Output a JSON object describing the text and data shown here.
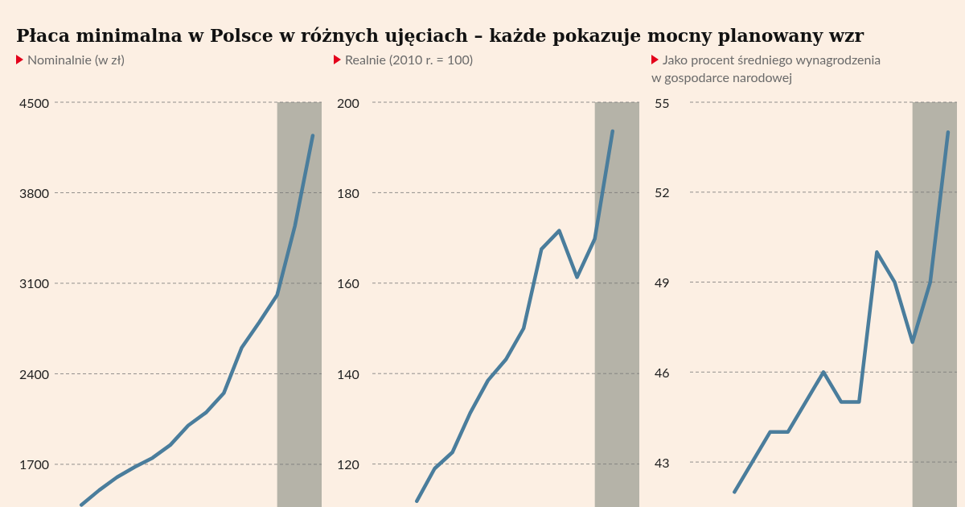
{
  "chart_data": [
    {
      "type": "line",
      "title": "Płaca minimalna w Polsce w różnych ujęciach – każde pokazuje mocny planowany wzr",
      "subtitle": "Nominalnie (w zł)",
      "categories": [
        null,
        null,
        null,
        null,
        null,
        null,
        null,
        null,
        null,
        null,
        null,
        null,
        null,
        null,
        null
      ],
      "ylim": [
        1370,
        4500
      ],
      "yticks": [
        1700,
        2400,
        3100,
        3800,
        4500
      ],
      "tick_labels": "y",
      "grid": "y",
      "series": [
        {
          "color": "#4a7d9c",
          "values": [
            null,
            1386,
            1500,
            1600,
            1680,
            1750,
            1850,
            2000,
            2100,
            2250,
            2600,
            2800,
            3010,
            3545,
            4242
          ]
        }
      ]
    },
    {
      "type": "line",
      "subtitle": "Realnie (2010 r. = 100)",
      "categories": [
        null,
        null,
        null,
        null,
        null,
        null,
        null,
        null,
        null,
        null,
        null,
        null,
        null,
        null,
        null
      ],
      "ylim": [
        110.5,
        200
      ],
      "yticks": [
        120,
        140,
        160,
        180,
        200
      ],
      "tick_labels": "y",
      "grid": "y",
      "series": [
        {
          "color": "#4a7d9c",
          "values": [
            null,
            null,
            111.8,
            119,
            122.6,
            131.3,
            138.5,
            143.1,
            150,
            167.5,
            171.6,
            161.3,
            169.8,
            193.6,
            null
          ]
        }
      ]
    },
    {
      "type": "line",
      "subtitle": "Jako procent średniego wynagrodzenia w gospodarce narodowej",
      "categories": [
        null,
        null,
        null,
        null,
        null,
        null,
        null,
        null,
        null,
        null,
        null,
        null,
        null,
        null,
        null
      ],
      "ylim": [
        41.5,
        55
      ],
      "yticks": [
        43,
        46,
        49,
        52,
        55
      ],
      "tick_labels": "y",
      "grid": "y",
      "series": [
        {
          "color": "#4a7d9c",
          "values": [
            null,
            null,
            42,
            43,
            44,
            44,
            45,
            46,
            45,
            45,
            50,
            49,
            47,
            49,
            54
          ]
        }
      ]
    }
  ]
}
